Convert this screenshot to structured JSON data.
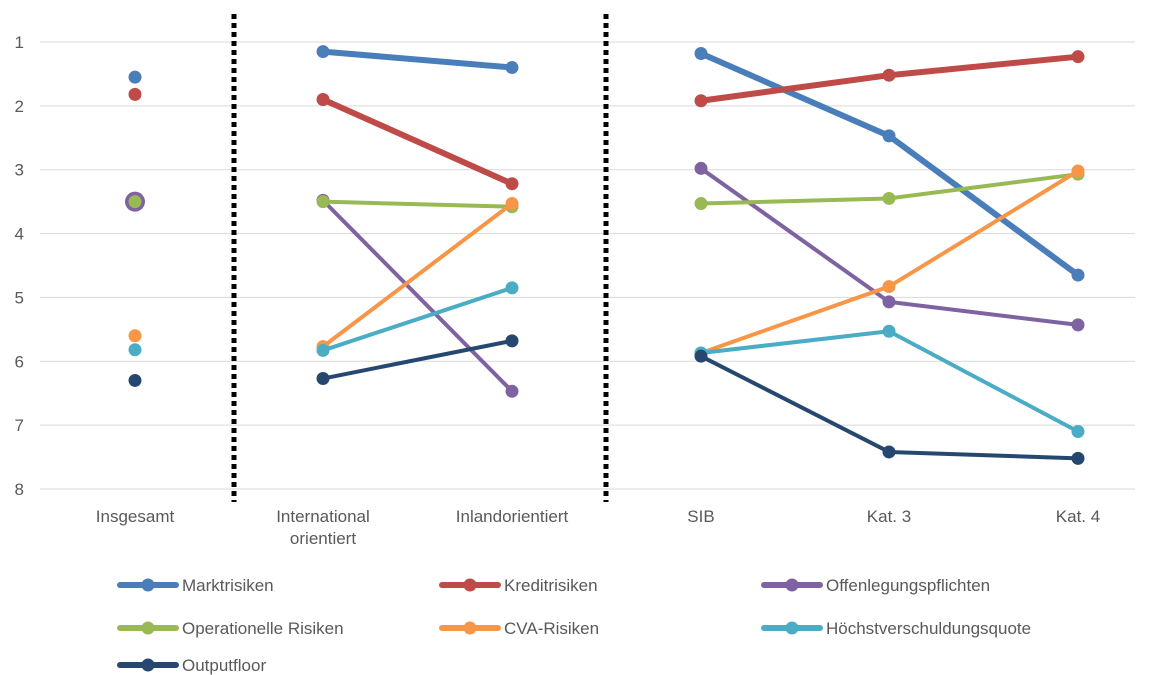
{
  "chart_data": {
    "type": "line",
    "title": "",
    "xlabel": "",
    "ylabel": "",
    "y_reversed": true,
    "ylim": [
      1,
      8
    ],
    "y_ticks": [
      1,
      2,
      3,
      4,
      5,
      6,
      7,
      8
    ],
    "grid": true,
    "legend_position": "bottom",
    "categories": [
      "Insgesamt",
      "International orientiert",
      "Inlandorientiert",
      "SIB",
      "Kat. 3",
      "Kat. 4"
    ],
    "category_lines": [
      [
        "Insgesamt"
      ],
      [
        "International",
        "orientiert"
      ],
      [
        "Inlandorientiert"
      ],
      [
        "SIB"
      ],
      [
        "Kat. 3"
      ],
      [
        "Kat. 4"
      ]
    ],
    "group_separators_after": [
      "Insgesamt",
      "Inlandorientiert"
    ],
    "groups": [
      [
        "Insgesamt"
      ],
      [
        "International orientiert",
        "Inlandorientiert"
      ],
      [
        "SIB",
        "Kat. 3",
        "Kat. 4"
      ]
    ],
    "series": [
      {
        "name": "Marktrisiken",
        "color": "#4a7ebb",
        "values": [
          1.55,
          1.15,
          1.4,
          1.18,
          2.47,
          4.65
        ]
      },
      {
        "name": "Kreditrisiken",
        "color": "#be4b48",
        "values": [
          1.82,
          1.9,
          3.22,
          1.92,
          1.52,
          1.23
        ]
      },
      {
        "name": "Offenlegungspflichten",
        "color": "#7f62a1",
        "values": [
          3.5,
          3.48,
          6.47,
          2.98,
          5.07,
          5.43
        ]
      },
      {
        "name": "Operationelle Risiken",
        "color": "#98b954",
        "values": [
          3.5,
          3.5,
          3.58,
          3.53,
          3.45,
          3.07
        ]
      },
      {
        "name": "CVA-Risiken",
        "color": "#f79646",
        "values": [
          5.6,
          5.77,
          3.53,
          5.87,
          4.83,
          3.02
        ]
      },
      {
        "name": "Höchstverschuldungsquote",
        "color": "#4bacc6",
        "values": [
          5.82,
          5.83,
          4.85,
          5.87,
          5.53,
          7.1
        ]
      },
      {
        "name": "Outputfloor",
        "color": "#264870",
        "values": [
          6.3,
          6.27,
          5.68,
          5.92,
          7.42,
          7.52
        ]
      }
    ]
  }
}
